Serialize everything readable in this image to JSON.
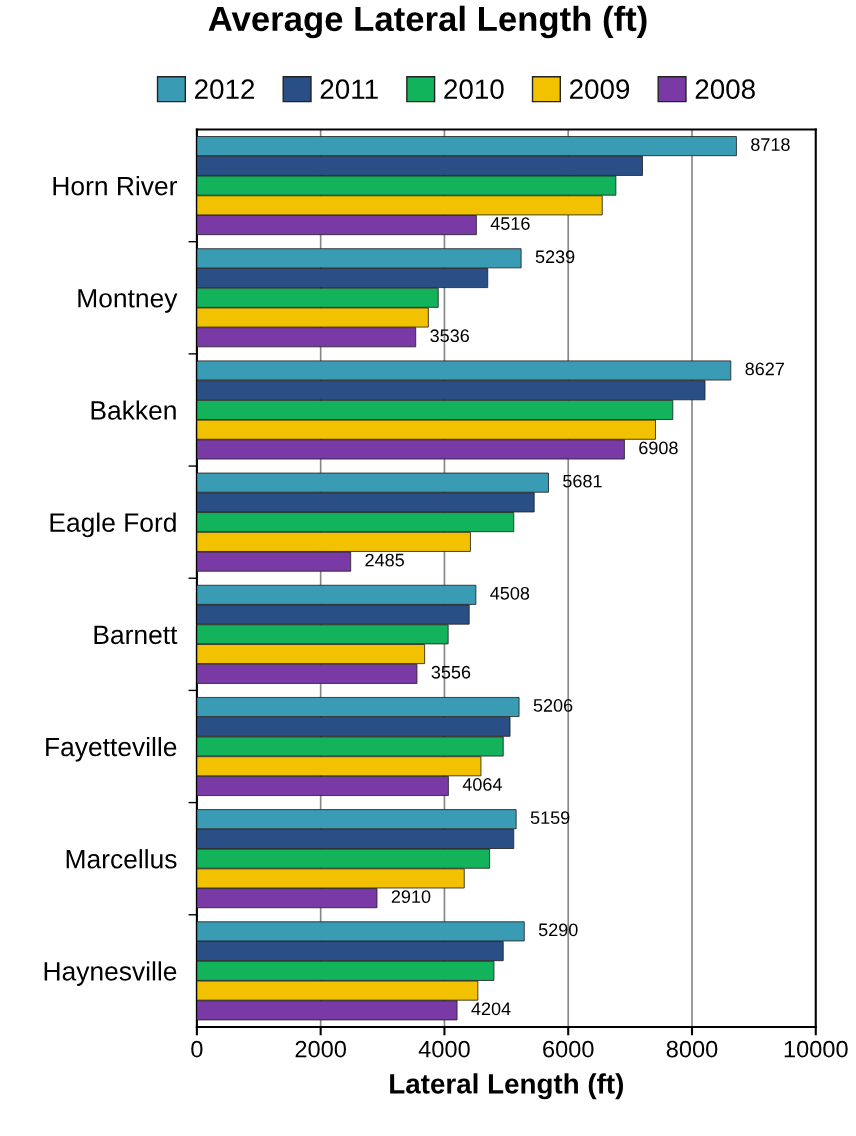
{
  "chart_data": {
    "type": "bar",
    "orientation": "horizontal",
    "title": "Average Lateral Length (ft)",
    "xlabel": "Lateral Length (ft)",
    "categories": [
      "Horn River",
      "Montney",
      "Bakken",
      "Eagle Ford",
      "Barnett",
      "Fayetteville",
      "Marcellus",
      "Haynesville"
    ],
    "series": [
      {
        "name": "2012",
        "color": "#3a9bb5",
        "values": [
          8718,
          5239,
          8627,
          5681,
          4508,
          5206,
          5159,
          5290
        ],
        "value_labels": [
          "8718",
          "5239",
          "8627",
          "5681",
          "4508",
          "5206",
          "5159",
          "5290"
        ]
      },
      {
        "name": "2011",
        "color": "#2a4f86",
        "values": [
          7200,
          4700,
          8210,
          5450,
          4400,
          5060,
          5120,
          4950
        ]
      },
      {
        "name": "2010",
        "color": "#12b35a",
        "values": [
          6770,
          3900,
          7690,
          5120,
          4060,
          4950,
          4730,
          4800
        ]
      },
      {
        "name": "2009",
        "color": "#f2c200",
        "values": [
          6550,
          3740,
          7410,
          4420,
          3680,
          4590,
          4320,
          4540
        ]
      },
      {
        "name": "2008",
        "color": "#7a3aa6",
        "values": [
          4516,
          3536,
          6908,
          2485,
          3556,
          4064,
          2910,
          4204
        ],
        "value_labels": [
          "4516",
          "3536",
          "6908",
          "2485",
          "3556",
          "4064",
          "2910",
          "4204"
        ]
      }
    ],
    "xlim": [
      0,
      10000
    ],
    "xticks": [
      0,
      2000,
      4000,
      6000,
      8000,
      10000
    ],
    "grid": "x",
    "legend": "top"
  }
}
